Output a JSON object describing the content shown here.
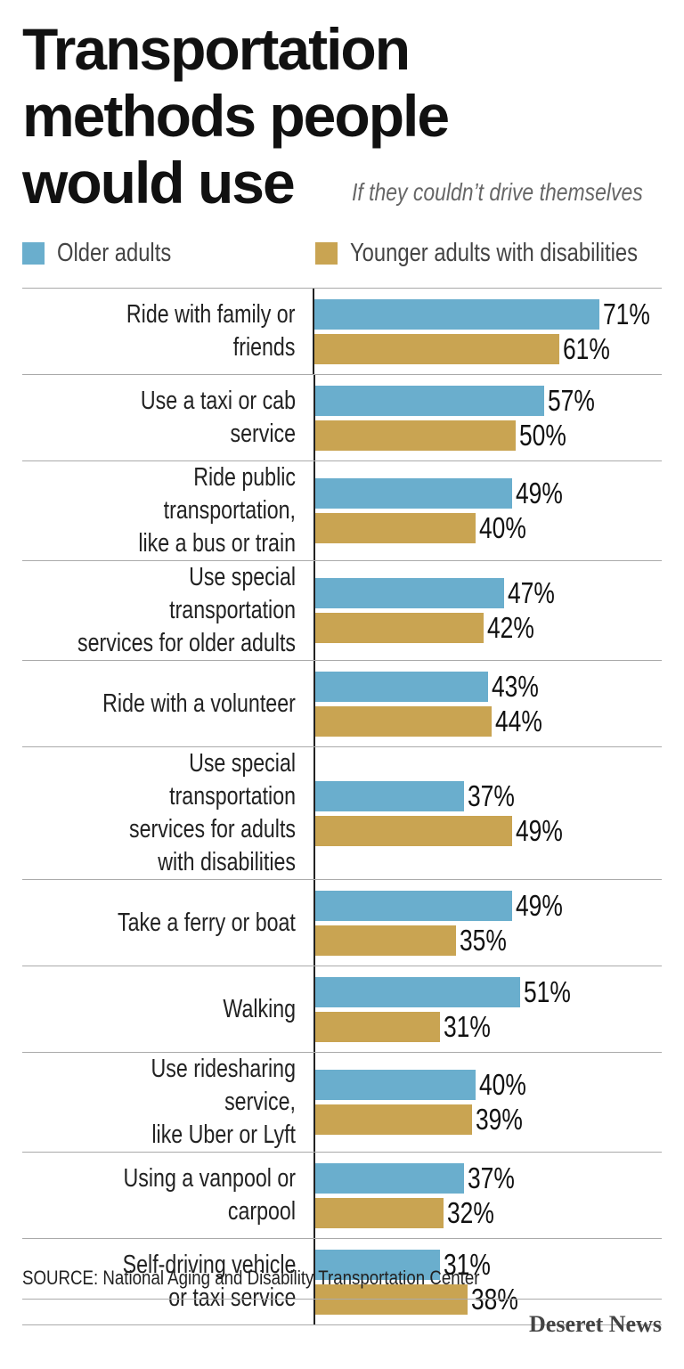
{
  "chart_data": {
    "type": "grouped-hbar",
    "title": "Transportation methods people would use",
    "subtitle": "If they couldn’t drive themselves",
    "categories": [
      "Ride with family or friends",
      "Use a taxi or cab service",
      "Ride public transportation,\nlike a bus or train",
      "Use special transportation\nservices for older adults",
      "Ride with a volunteer",
      "Use special transportation\nservices for adults\nwith disabilities",
      "Take a ferry or boat",
      "Walking",
      "Use ridesharing service,\nlike Uber or Lyft",
      "Using a vanpool or carpool",
      "Self-driving vehicle\nor taxi service"
    ],
    "series": [
      {
        "name": "Older adults",
        "color": "#6aaecd",
        "values": [
          71,
          57,
          49,
          47,
          43,
          37,
          49,
          51,
          40,
          37,
          31
        ],
        "value_labels": [
          "71%",
          "57%",
          "49%",
          "47%",
          "43%",
          "37%",
          "49%",
          "51%",
          "40%",
          "37%",
          "31%"
        ]
      },
      {
        "name": "Younger adults with disabilities",
        "color": "#c9a452",
        "values": [
          61,
          50,
          40,
          42,
          44,
          49,
          35,
          31,
          39,
          32,
          38
        ],
        "value_labels": [
          "61%",
          "50%",
          "40%",
          "42%",
          "44%",
          "49%",
          "35%",
          "31%",
          "39%",
          "32%",
          "38%"
        ]
      }
    ],
    "xlim": [
      0,
      100
    ],
    "source": "SOURCE: National Aging and Disability Transportation Center",
    "credit": "Deseret News"
  }
}
